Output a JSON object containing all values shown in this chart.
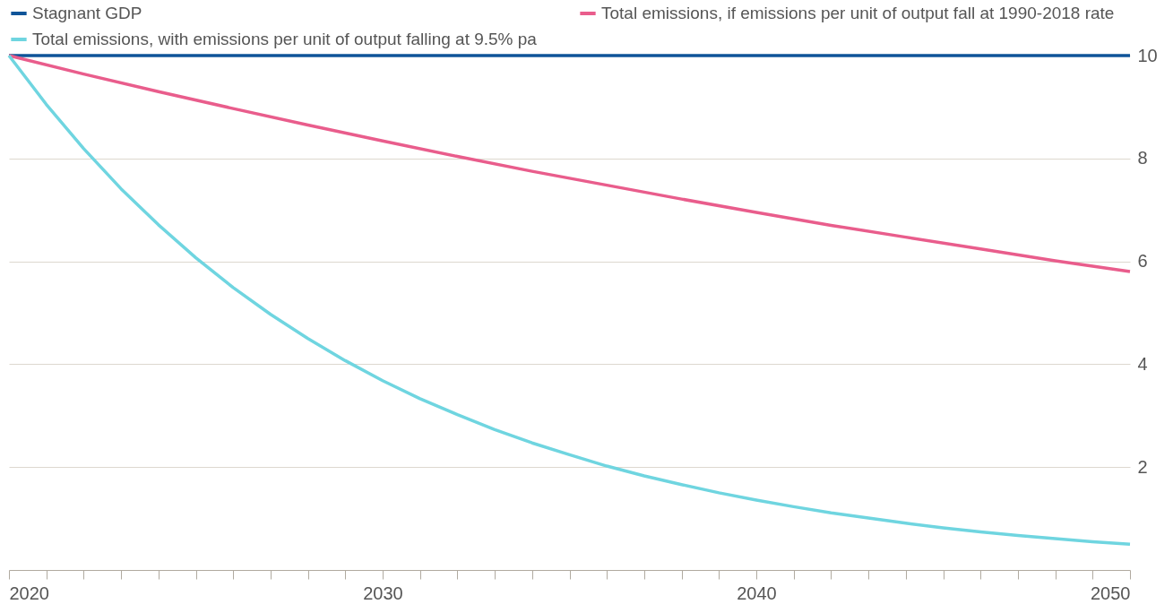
{
  "chart_data": {
    "type": "line",
    "xlim": [
      2020,
      2050
    ],
    "xticks": [
      2020,
      {
        "value": 2021,
        "label": null
      },
      {
        "value": 2022,
        "label": null
      },
      {
        "value": 2023,
        "label": null
      },
      {
        "value": 2024,
        "label": null
      },
      {
        "value": 2025,
        "label": null
      },
      {
        "value": 2026,
        "label": null
      },
      {
        "value": 2027,
        "label": null
      },
      {
        "value": 2028,
        "label": null
      },
      {
        "value": 2029,
        "label": null
      },
      2030,
      {
        "value": 2031,
        "label": null
      },
      {
        "value": 2032,
        "label": null
      },
      {
        "value": 2033,
        "label": null
      },
      {
        "value": 2034,
        "label": null
      },
      {
        "value": 2035,
        "label": null
      },
      {
        "value": 2036,
        "label": null
      },
      {
        "value": 2037,
        "label": null
      },
      {
        "value": 2038,
        "label": null
      },
      {
        "value": 2039,
        "label": null
      },
      2040,
      {
        "value": 2041,
        "label": null
      },
      {
        "value": 2042,
        "label": null
      },
      {
        "value": 2043,
        "label": null
      },
      {
        "value": 2044,
        "label": null
      },
      {
        "value": 2045,
        "label": null
      },
      {
        "value": 2046,
        "label": null
      },
      {
        "value": 2047,
        "label": null
      },
      {
        "value": 2048,
        "label": null
      },
      {
        "value": 2049,
        "label": null
      },
      2050
    ],
    "ylim": [
      0,
      10
    ],
    "yticks": [
      2,
      4,
      6,
      8,
      10
    ],
    "grid": "y",
    "legend": "top left",
    "marker": "none",
    "line_style": "solid",
    "series": [
      {
        "name": "Stagnant GDP",
        "color": "#0f5499",
        "x": [
          2020,
          2050
        ],
        "values": [
          10,
          10
        ]
      },
      {
        "name": "Total emissions, if emissions per unit of output fall at 1990-2018 rate",
        "color": "#e95d8c",
        "x": [
          2020,
          2022,
          2024,
          2026,
          2028,
          2030,
          2032,
          2034,
          2036,
          2038,
          2040,
          2042,
          2044,
          2046,
          2048,
          2050
        ],
        "values": [
          10,
          9.64,
          9.3,
          8.97,
          8.65,
          8.34,
          8.04,
          7.75,
          7.48,
          7.21,
          6.95,
          6.7,
          6.47,
          6.24,
          6.01,
          5.8
        ]
      },
      {
        "name": "Total emissions, with emissions per unit of output falling at 9.5% pa",
        "color": "#6fd5e0",
        "x": [
          2020,
          2021,
          2022,
          2023,
          2024,
          2025,
          2026,
          2027,
          2028,
          2029,
          2030,
          2031,
          2032,
          2033,
          2034,
          2035,
          2036,
          2037,
          2038,
          2039,
          2040,
          2041,
          2042,
          2043,
          2044,
          2045,
          2046,
          2047,
          2048,
          2049,
          2050
        ],
        "values": [
          10,
          9.05,
          8.19,
          7.41,
          6.71,
          6.07,
          5.49,
          4.97,
          4.5,
          4.07,
          3.68,
          3.33,
          3.02,
          2.73,
          2.47,
          2.24,
          2.02,
          1.83,
          1.66,
          1.5,
          1.36,
          1.23,
          1.11,
          1.01,
          0.91,
          0.82,
          0.74,
          0.67,
          0.61,
          0.55,
          0.5
        ]
      }
    ]
  }
}
